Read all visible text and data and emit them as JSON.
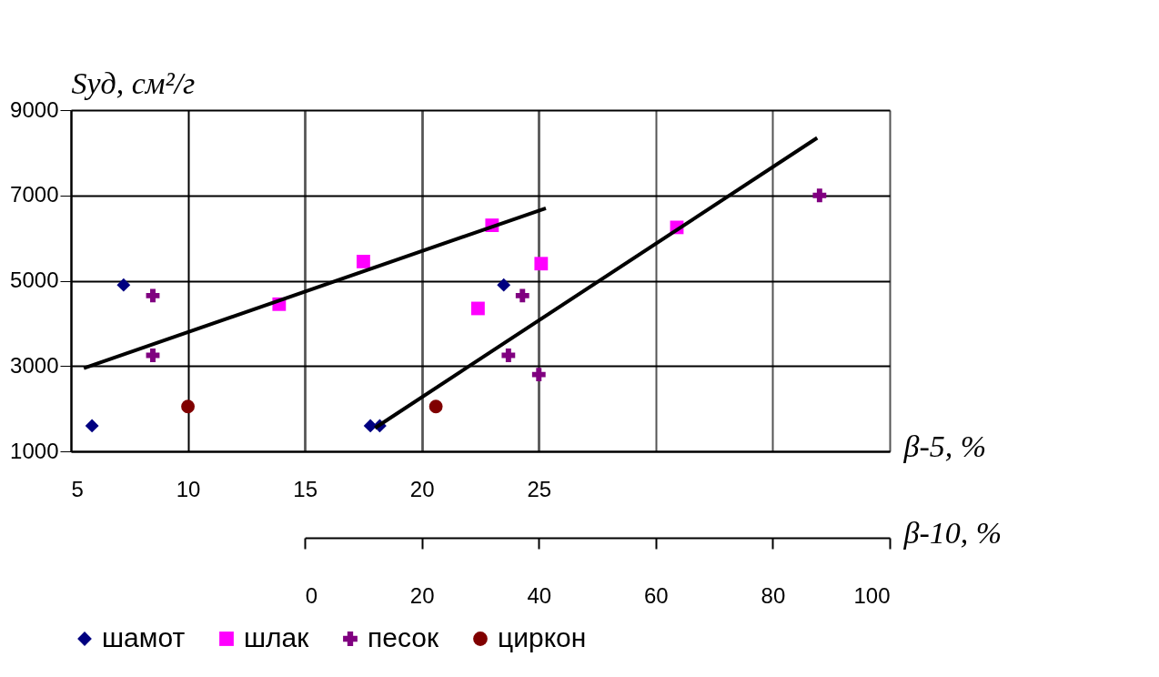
{
  "chart_data": {
    "type": "scatter",
    "xlabel": "β-5, %",
    "x2label": "β-10, %",
    "ylabel": "Sуд, см²/г",
    "xlim": [
      5,
      40
    ],
    "xticks": [
      5,
      10,
      15,
      20,
      25
    ],
    "x2lim": [
      0,
      100
    ],
    "x2ticks": [
      0,
      20,
      40,
      60,
      80,
      100
    ],
    "ylim": [
      1000,
      9000
    ],
    "yticks": [
      1000,
      3000,
      5000,
      7000,
      9000
    ],
    "grid": true,
    "legend": "bottom",
    "series": [
      {
        "name": "шамот",
        "color": "#000080",
        "marker": "diamond",
        "x": [
          5.9,
          7.25,
          17.8,
          18.2,
          23.5
        ],
        "values": [
          1600,
          4900,
          1600,
          1600,
          4900
        ]
      },
      {
        "name": "шлак",
        "color": "#ff00ff",
        "marker": "square",
        "x": [
          13.9,
          17.5,
          23.0,
          25.1,
          22.4,
          30.9
        ],
        "values": [
          4450,
          5450,
          6300,
          5400,
          4350,
          6250
        ]
      },
      {
        "name": "песок",
        "color": "#800080",
        "marker": "cross",
        "x": [
          8.5,
          8.5,
          24.3,
          23.7,
          25.0,
          37.0
        ],
        "values": [
          4650,
          3250,
          4650,
          3250,
          2800,
          7000
        ]
      },
      {
        "name": "циркон",
        "color": "#800000",
        "marker": "circle",
        "x": [
          10.0,
          20.6
        ],
        "values": [
          2050,
          2050
        ]
      },
      {
        "type": "line",
        "color": "#000000",
        "x": [
          5.55,
          25.3
        ],
        "values": [
          2950,
          6700
        ]
      },
      {
        "type": "line",
        "color": "#000000",
        "x": [
          18.0,
          36.9
        ],
        "values": [
          1550,
          8350
        ]
      }
    ]
  }
}
